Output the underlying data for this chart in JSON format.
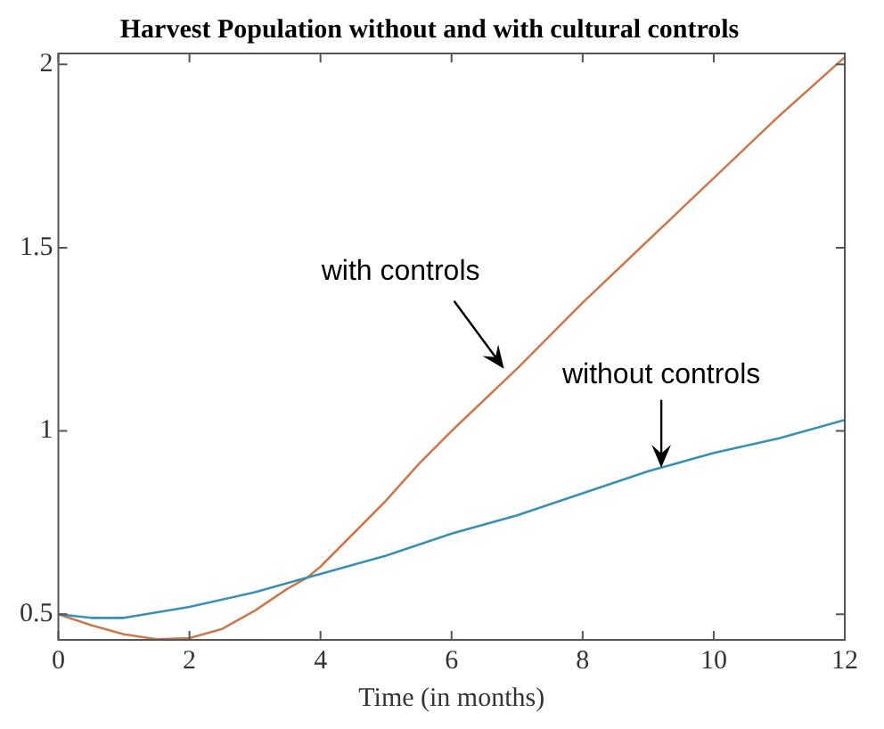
{
  "chart_data": {
    "type": "line",
    "title": "Harvest Population without and with cultural controls",
    "xlabel": "Time (in months)",
    "xlim": [
      0,
      12
    ],
    "xticks": [
      0,
      2,
      4,
      6,
      8,
      10,
      12
    ],
    "ylim": [
      0.43,
      2.03
    ],
    "yticks": [
      0.5,
      1,
      1.5,
      2
    ],
    "grid": false,
    "legend": false,
    "marker": "none",
    "line_style": "solid",
    "series": [
      {
        "color": "#3a8fb5",
        "x": [
          0,
          0.5,
          1,
          2,
          3,
          3.8,
          4,
          5,
          6,
          7,
          8,
          9,
          10,
          11,
          12
        ],
        "values": [
          0.5,
          0.49,
          0.49,
          0.52,
          0.56,
          0.6,
          0.61,
          0.66,
          0.72,
          0.77,
          0.83,
          0.89,
          0.94,
          0.98,
          1.03
        ]
      },
      {
        "color": "#c87b50",
        "x": [
          0,
          0.5,
          1,
          1.5,
          2,
          2.5,
          3,
          3.5,
          3.8,
          4,
          4.5,
          5,
          5.5,
          6,
          7,
          8,
          9,
          10,
          11,
          12
        ],
        "values": [
          0.5,
          0.47,
          0.445,
          0.432,
          0.435,
          0.46,
          0.51,
          0.57,
          0.6,
          0.63,
          0.72,
          0.81,
          0.91,
          1.0,
          1.17,
          1.35,
          1.52,
          1.69,
          1.86,
          2.02
        ]
      }
    ],
    "annotations": [
      {
        "text": "with controls",
        "x": 6.8,
        "y": 1.17
      },
      {
        "text": "without controls",
        "x": 9.2,
        "y": 0.9
      }
    ]
  }
}
